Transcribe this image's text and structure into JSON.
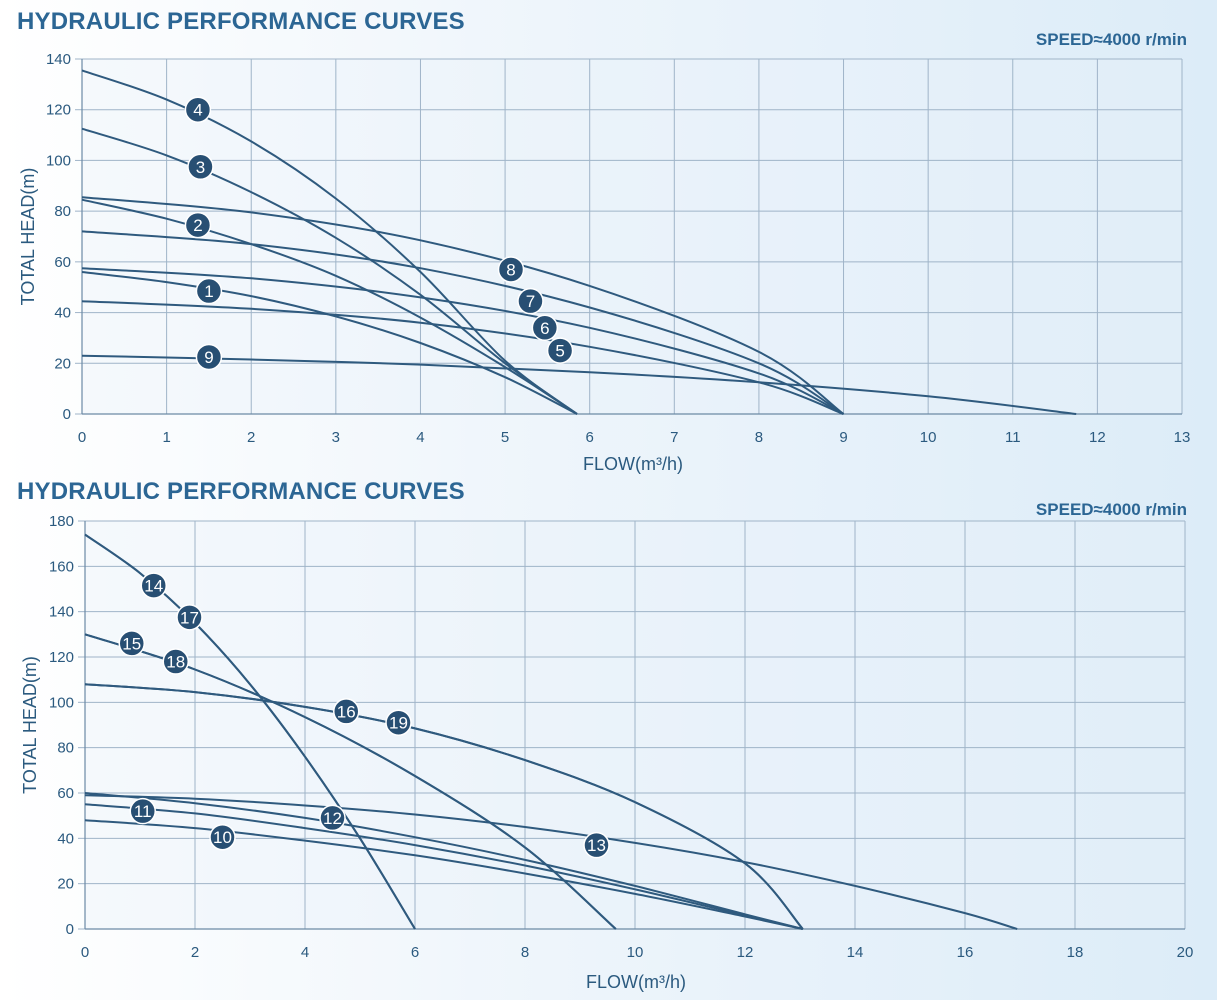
{
  "colors": {
    "curve": "#2f5a7e",
    "marker": "#284f73",
    "marker_text": "#ffffff",
    "grid": "#9fb4c8",
    "axis_text": "#2b5a7f",
    "title": "#2c6694"
  },
  "chart_data": [
    {
      "type": "line",
      "title": "HYDRAULIC PERFORMANCE CURVES",
      "speed_label": "SPEED≈4000 r/min",
      "xlabel": "FLOW(m³/h)",
      "ylabel": "TOTAL HEAD(m)",
      "xlim": [
        0,
        13
      ],
      "ylim": [
        0,
        140
      ],
      "xticks": [
        0,
        1,
        2,
        3,
        4,
        5,
        6,
        7,
        8,
        9,
        10,
        11,
        12,
        13
      ],
      "yticks": [
        0,
        20,
        40,
        60,
        80,
        100,
        120,
        140
      ],
      "series": [
        {
          "name": "1",
          "label_at": [
            1.5,
            48.5
          ],
          "points": [
            [
              0,
              56
            ],
            [
              1,
              52
            ],
            [
              2,
              46.5
            ],
            [
              3,
              38.5
            ],
            [
              4,
              28
            ],
            [
              5,
              14.5
            ],
            [
              5.85,
              0
            ]
          ]
        },
        {
          "name": "2",
          "label_at": [
            1.37,
            74.5
          ],
          "points": [
            [
              0,
              84.5
            ],
            [
              1,
              77
            ],
            [
              2,
              67
            ],
            [
              3,
              54.5
            ],
            [
              4,
              38
            ],
            [
              5,
              18.5
            ],
            [
              5.85,
              0
            ]
          ]
        },
        {
          "name": "3",
          "label_at": [
            1.4,
            97.5
          ],
          "points": [
            [
              0,
              112.5
            ],
            [
              1,
              102
            ],
            [
              2,
              87.5
            ],
            [
              3,
              69.5
            ],
            [
              4,
              47
            ],
            [
              5,
              20
            ],
            [
              5.85,
              0
            ]
          ]
        },
        {
          "name": "4",
          "label_at": [
            1.37,
            120
          ],
          "points": [
            [
              0,
              135.5
            ],
            [
              1,
              124
            ],
            [
              2,
              107.5
            ],
            [
              3,
              85
            ],
            [
              4,
              56
            ],
            [
              5,
              21
            ],
            [
              5.85,
              0
            ]
          ]
        },
        {
          "name": "5",
          "label_at": [
            5.65,
            25
          ],
          "points": [
            [
              0,
              44.5
            ],
            [
              2,
              41.5
            ],
            [
              4,
              36
            ],
            [
              6,
              26.5
            ],
            [
              8,
              12.5
            ],
            [
              9,
              0
            ]
          ]
        },
        {
          "name": "6",
          "label_at": [
            5.47,
            34
          ],
          "points": [
            [
              0,
              57.5
            ],
            [
              2,
              53.5
            ],
            [
              4,
              46
            ],
            [
              6,
              34
            ],
            [
              8,
              16
            ],
            [
              9,
              0
            ]
          ]
        },
        {
          "name": "7",
          "label_at": [
            5.3,
            44.5
          ],
          "points": [
            [
              0,
              72
            ],
            [
              2,
              67
            ],
            [
              4,
              57.5
            ],
            [
              6,
              42
            ],
            [
              8,
              20
            ],
            [
              9,
              0
            ]
          ]
        },
        {
          "name": "8",
          "label_at": [
            5.07,
            57
          ],
          "points": [
            [
              0,
              85.5
            ],
            [
              2,
              79.5
            ],
            [
              4,
              68.5
            ],
            [
              6,
              50.5
            ],
            [
              8,
              24.5
            ],
            [
              9,
              0
            ]
          ]
        },
        {
          "name": "9",
          "label_at": [
            1.5,
            22.5
          ],
          "points": [
            [
              0,
              23
            ],
            [
              2,
              21.5
            ],
            [
              4,
              19.5
            ],
            [
              6,
              16.5
            ],
            [
              8,
              12.5
            ],
            [
              10,
              7
            ],
            [
              11.75,
              0
            ]
          ]
        }
      ]
    },
    {
      "type": "line",
      "title": "HYDRAULIC PERFORMANCE CURVES",
      "speed_label": "SPEED≈4000 r/min",
      "xlabel": "FLOW(m³/h)",
      "ylabel": "TOTAL HEAD(m)",
      "xlim": [
        0,
        20
      ],
      "ylim": [
        0,
        180
      ],
      "xticks": [
        0,
        2,
        4,
        6,
        8,
        10,
        12,
        14,
        16,
        18,
        20
      ],
      "yticks": [
        0,
        20,
        40,
        60,
        80,
        100,
        120,
        140,
        160,
        180
      ],
      "series": [
        {
          "name": "10",
          "label_at": [
            2.5,
            40.5
          ],
          "points": [
            [
              0,
              48
            ],
            [
              2,
              44.5
            ],
            [
              4,
              39
            ],
            [
              6,
              32.5
            ],
            [
              8,
              24.5
            ],
            [
              10,
              15.5
            ],
            [
              12,
              5.5
            ],
            [
              13.05,
              0
            ]
          ]
        },
        {
          "name": "11",
          "label_at": [
            1.05,
            52
          ],
          "points": [
            [
              0,
              55
            ],
            [
              2,
              51
            ],
            [
              4,
              44.5
            ],
            [
              6,
              37
            ],
            [
              8,
              28
            ],
            [
              10,
              17.5
            ],
            [
              12,
              6
            ],
            [
              13.05,
              0
            ]
          ]
        },
        {
          "name": "12",
          "label_at": [
            4.5,
            49
          ],
          "points": [
            [
              0,
              60
            ],
            [
              2,
              55.5
            ],
            [
              4,
              49
            ],
            [
              6,
              40.5
            ],
            [
              8,
              30.5
            ],
            [
              10,
              19
            ],
            [
              12,
              6.5
            ],
            [
              13.05,
              0
            ]
          ]
        },
        {
          "name": "13",
          "label_at": [
            9.3,
            37
          ],
          "points": [
            [
              0,
              59
            ],
            [
              2,
              57.5
            ],
            [
              4,
              54.5
            ],
            [
              6,
              50.5
            ],
            [
              8,
              45
            ],
            [
              10,
              38
            ],
            [
              12,
              29.5
            ],
            [
              14,
              19
            ],
            [
              16,
              7
            ],
            [
              16.95,
              0
            ]
          ]
        },
        {
          "name": "14",
          "label_at": [
            1.25,
            151.5
          ],
          "points": [
            [
              0,
              174
            ],
            [
              1,
              157
            ],
            [
              2,
              135
            ],
            [
              3,
              108
            ],
            [
              4,
              76
            ],
            [
              5,
              40
            ],
            [
              6,
              0
            ]
          ]
        },
        {
          "name": "15",
          "label_at": [
            0.85,
            126
          ],
          "points": [
            [
              0,
              130
            ],
            [
              2,
              114.5
            ],
            [
              4,
              93.5
            ],
            [
              6,
              67.5
            ],
            [
              8,
              36
            ],
            [
              9.65,
              0
            ]
          ]
        },
        {
          "name": "16",
          "label_at": [
            4.75,
            96
          ],
          "points": [
            [
              0,
              108
            ],
            [
              2,
              104.5
            ],
            [
              4,
              98
            ],
            [
              6,
              88.5
            ],
            [
              8,
              74.5
            ],
            [
              10,
              56
            ],
            [
              12,
              29
            ],
            [
              13.05,
              0
            ]
          ]
        },
        {
          "name": "17",
          "label_at": [
            1.9,
            137.5
          ],
          "points": [
            [
              0,
              174
            ],
            [
              1,
              157
            ],
            [
              2,
              135
            ],
            [
              3,
              108
            ],
            [
              4,
              76
            ],
            [
              5,
              40
            ],
            [
              6,
              0
            ]
          ]
        },
        {
          "name": "18",
          "label_at": [
            1.65,
            118
          ],
          "points": [
            [
              0,
              130
            ],
            [
              2,
              114.5
            ],
            [
              4,
              93.5
            ],
            [
              6,
              67.5
            ],
            [
              8,
              36
            ],
            [
              9.65,
              0
            ]
          ]
        },
        {
          "name": "19",
          "label_at": [
            5.7,
            91
          ],
          "points": [
            [
              0,
              108
            ],
            [
              2,
              104.5
            ],
            [
              4,
              98
            ],
            [
              6,
              88.5
            ],
            [
              8,
              74.5
            ],
            [
              10,
              56
            ],
            [
              12,
              29
            ],
            [
              13.05,
              0
            ]
          ]
        }
      ]
    }
  ]
}
